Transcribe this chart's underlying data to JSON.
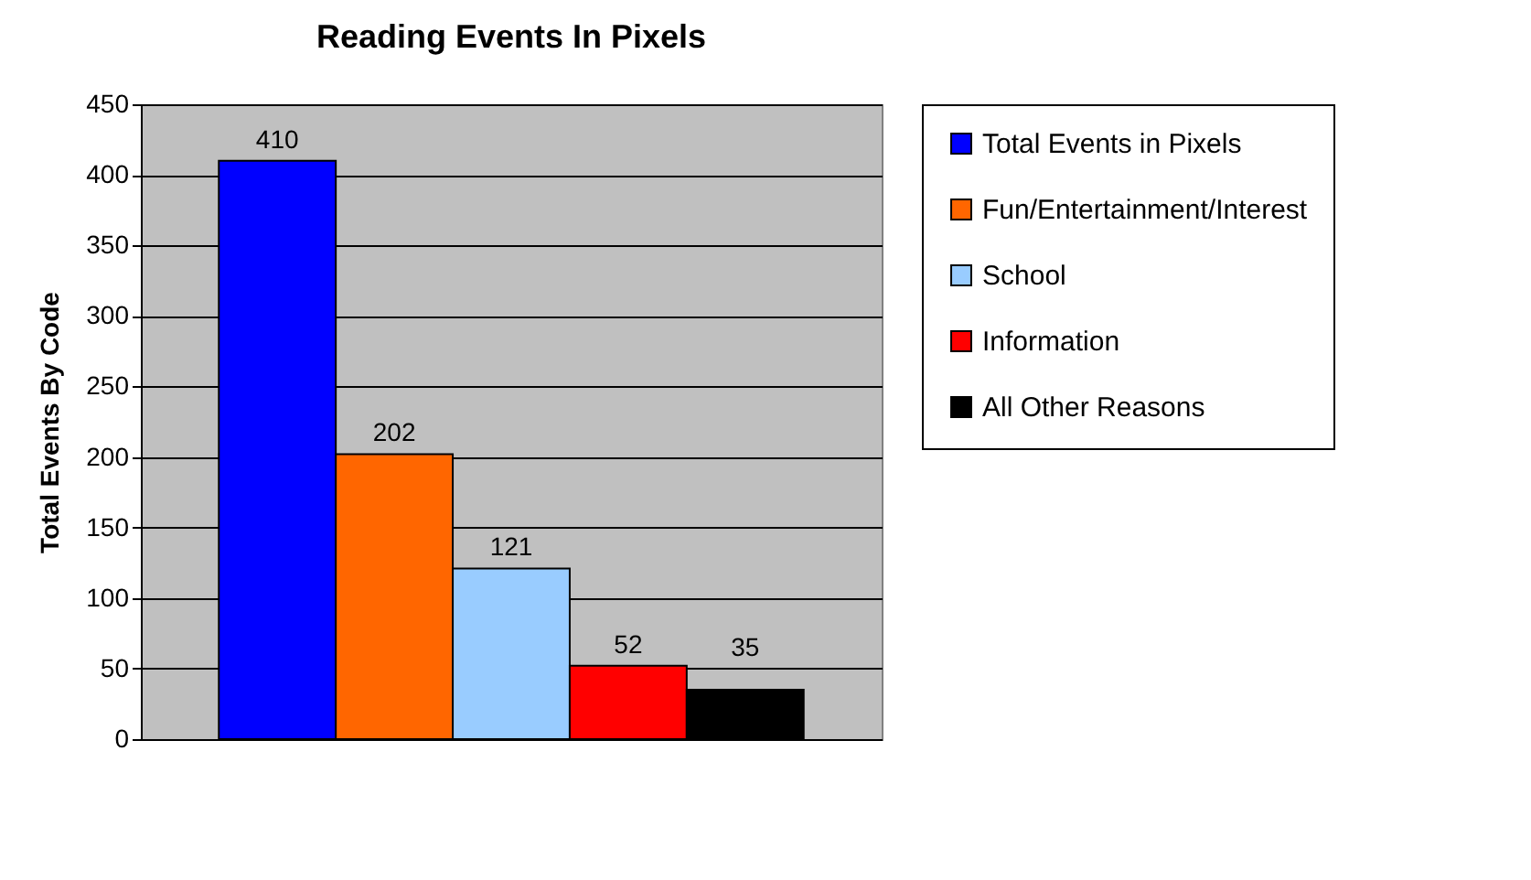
{
  "chart_data": {
    "type": "bar",
    "title": "Reading Events In Pixels",
    "ylabel": "Total Events By Code",
    "categories": [
      null
    ],
    "series": [
      {
        "name": "Total Events in Pixels",
        "color": "#0000ff",
        "values": [
          410
        ]
      },
      {
        "name": "Fun/Entertainment/Interest",
        "color": "#ff6600",
        "values": [
          202
        ]
      },
      {
        "name": "School",
        "color": "#99ccff",
        "values": [
          121
        ]
      },
      {
        "name": "Information",
        "color": "#ff0000",
        "values": [
          52
        ]
      },
      {
        "name": "All Other Reasons",
        "color": "#000000",
        "values": [
          35
        ]
      }
    ],
    "ylim": [
      0,
      450
    ],
    "yticks": [
      0,
      50,
      100,
      150,
      200,
      250,
      300,
      350,
      400,
      450
    ],
    "grid": "y",
    "legend": "right",
    "data_labels": true
  }
}
